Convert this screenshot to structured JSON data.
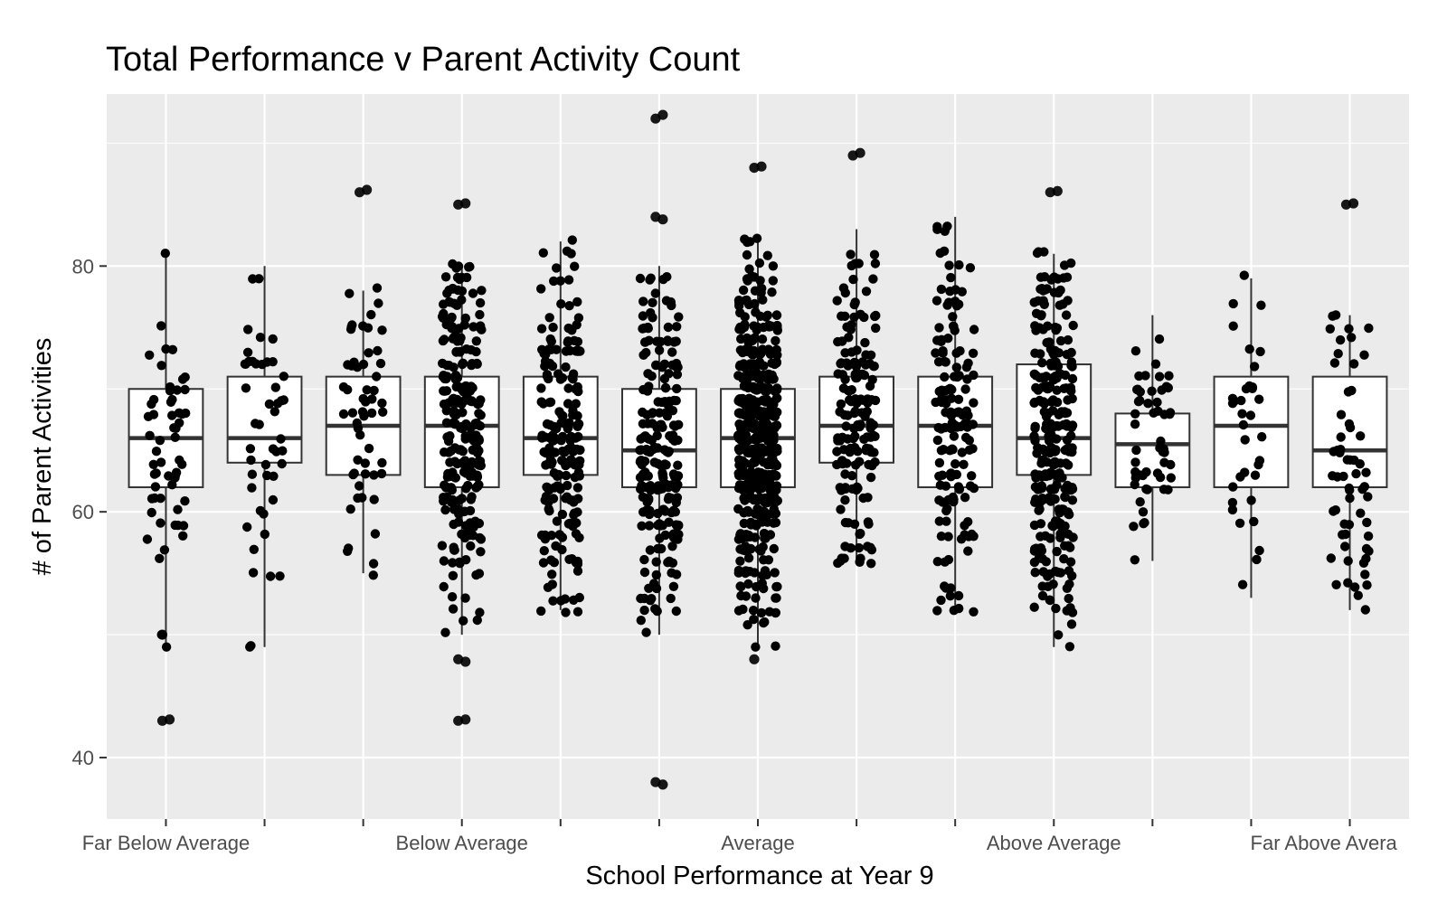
{
  "chart_data": {
    "type": "boxplot",
    "title": "Total Performance v Parent Activity Count",
    "xlabel": "School Performance at Year 9",
    "ylabel": "# of Parent Activities",
    "ylim": [
      35,
      94
    ],
    "yticks": [
      40,
      60,
      80
    ],
    "grid": true,
    "legend": "none",
    "x_tick_labels": [
      "Far Below Average",
      "",
      "",
      "Below Average",
      "",
      "",
      "Average",
      "",
      "",
      "Above Average",
      "",
      "",
      "Far Above Avera"
    ],
    "boxes": [
      {
        "q1": 62,
        "median": 66,
        "q3": 70,
        "whisker_low": 49,
        "whisker_high": 81,
        "outliers": [
          43,
          43.1,
          50
        ],
        "band": [
          56,
          81
        ],
        "count": 55,
        "extra": [
          49,
          50
        ]
      },
      {
        "q1": 64,
        "median": 66,
        "q3": 71,
        "whisker_low": 49,
        "whisker_high": 80,
        "outliers": [],
        "band": [
          54,
          80
        ],
        "count": 45,
        "extra": [
          49,
          49.1
        ]
      },
      {
        "q1": 63,
        "median": 67,
        "q3": 71,
        "whisker_low": 55,
        "whisker_high": 78,
        "outliers": [
          86,
          86.2
        ],
        "band": [
          55,
          78
        ],
        "count": 55,
        "extra": []
      },
      {
        "q1": 62,
        "median": 67,
        "q3": 71,
        "whisker_low": 50,
        "whisker_high": 80,
        "outliers": [
          85,
          85.1,
          48,
          47.8,
          43,
          43.1
        ],
        "band": [
          50,
          80
        ],
        "count": 260,
        "extra": []
      },
      {
        "q1": 63,
        "median": 66,
        "q3": 71,
        "whisker_low": 52,
        "whisker_high": 82,
        "outliers": [],
        "band": [
          52,
          82
        ],
        "count": 210,
        "extra": []
      },
      {
        "q1": 62,
        "median": 65,
        "q3": 70,
        "whisker_low": 50,
        "whisker_high": 80,
        "outliers": [
          92,
          92.3,
          84,
          83.8,
          38,
          37.8
        ],
        "band": [
          50,
          80
        ],
        "count": 220,
        "extra": []
      },
      {
        "q1": 62,
        "median": 66,
        "q3": 70,
        "whisker_low": 49,
        "whisker_high": 82,
        "outliers": [
          88,
          88.1,
          48
        ],
        "band": [
          49,
          82
        ],
        "count": 520,
        "extra": []
      },
      {
        "q1": 64,
        "median": 67,
        "q3": 71,
        "whisker_low": 56,
        "whisker_high": 83,
        "outliers": [
          89,
          89.2
        ],
        "band": [
          56,
          83
        ],
        "count": 165,
        "extra": []
      },
      {
        "q1": 62,
        "median": 67,
        "q3": 71,
        "whisker_low": 52,
        "whisker_high": 84,
        "outliers": [],
        "band": [
          52,
          84
        ],
        "count": 150,
        "extra": []
      },
      {
        "q1": 63,
        "median": 66,
        "q3": 72,
        "whisker_low": 49,
        "whisker_high": 81,
        "outliers": [
          86,
          86.1
        ],
        "band": [
          49,
          81
        ],
        "count": 280,
        "extra": []
      },
      {
        "q1": 62,
        "median": 65.5,
        "q3": 68,
        "whisker_low": 56,
        "whisker_high": 76,
        "outliers": [],
        "band": [
          56,
          76
        ],
        "count": 55,
        "extra": []
      },
      {
        "q1": 62,
        "median": 67,
        "q3": 71,
        "whisker_low": 53,
        "whisker_high": 79,
        "outliers": [],
        "band": [
          53,
          79
        ],
        "count": 35,
        "extra": []
      },
      {
        "q1": 62,
        "median": 65,
        "q3": 71,
        "whisker_low": 52,
        "whisker_high": 76,
        "outliers": [
          85,
          85.1
        ],
        "band": [
          52,
          76
        ],
        "count": 60,
        "extra": []
      }
    ]
  }
}
